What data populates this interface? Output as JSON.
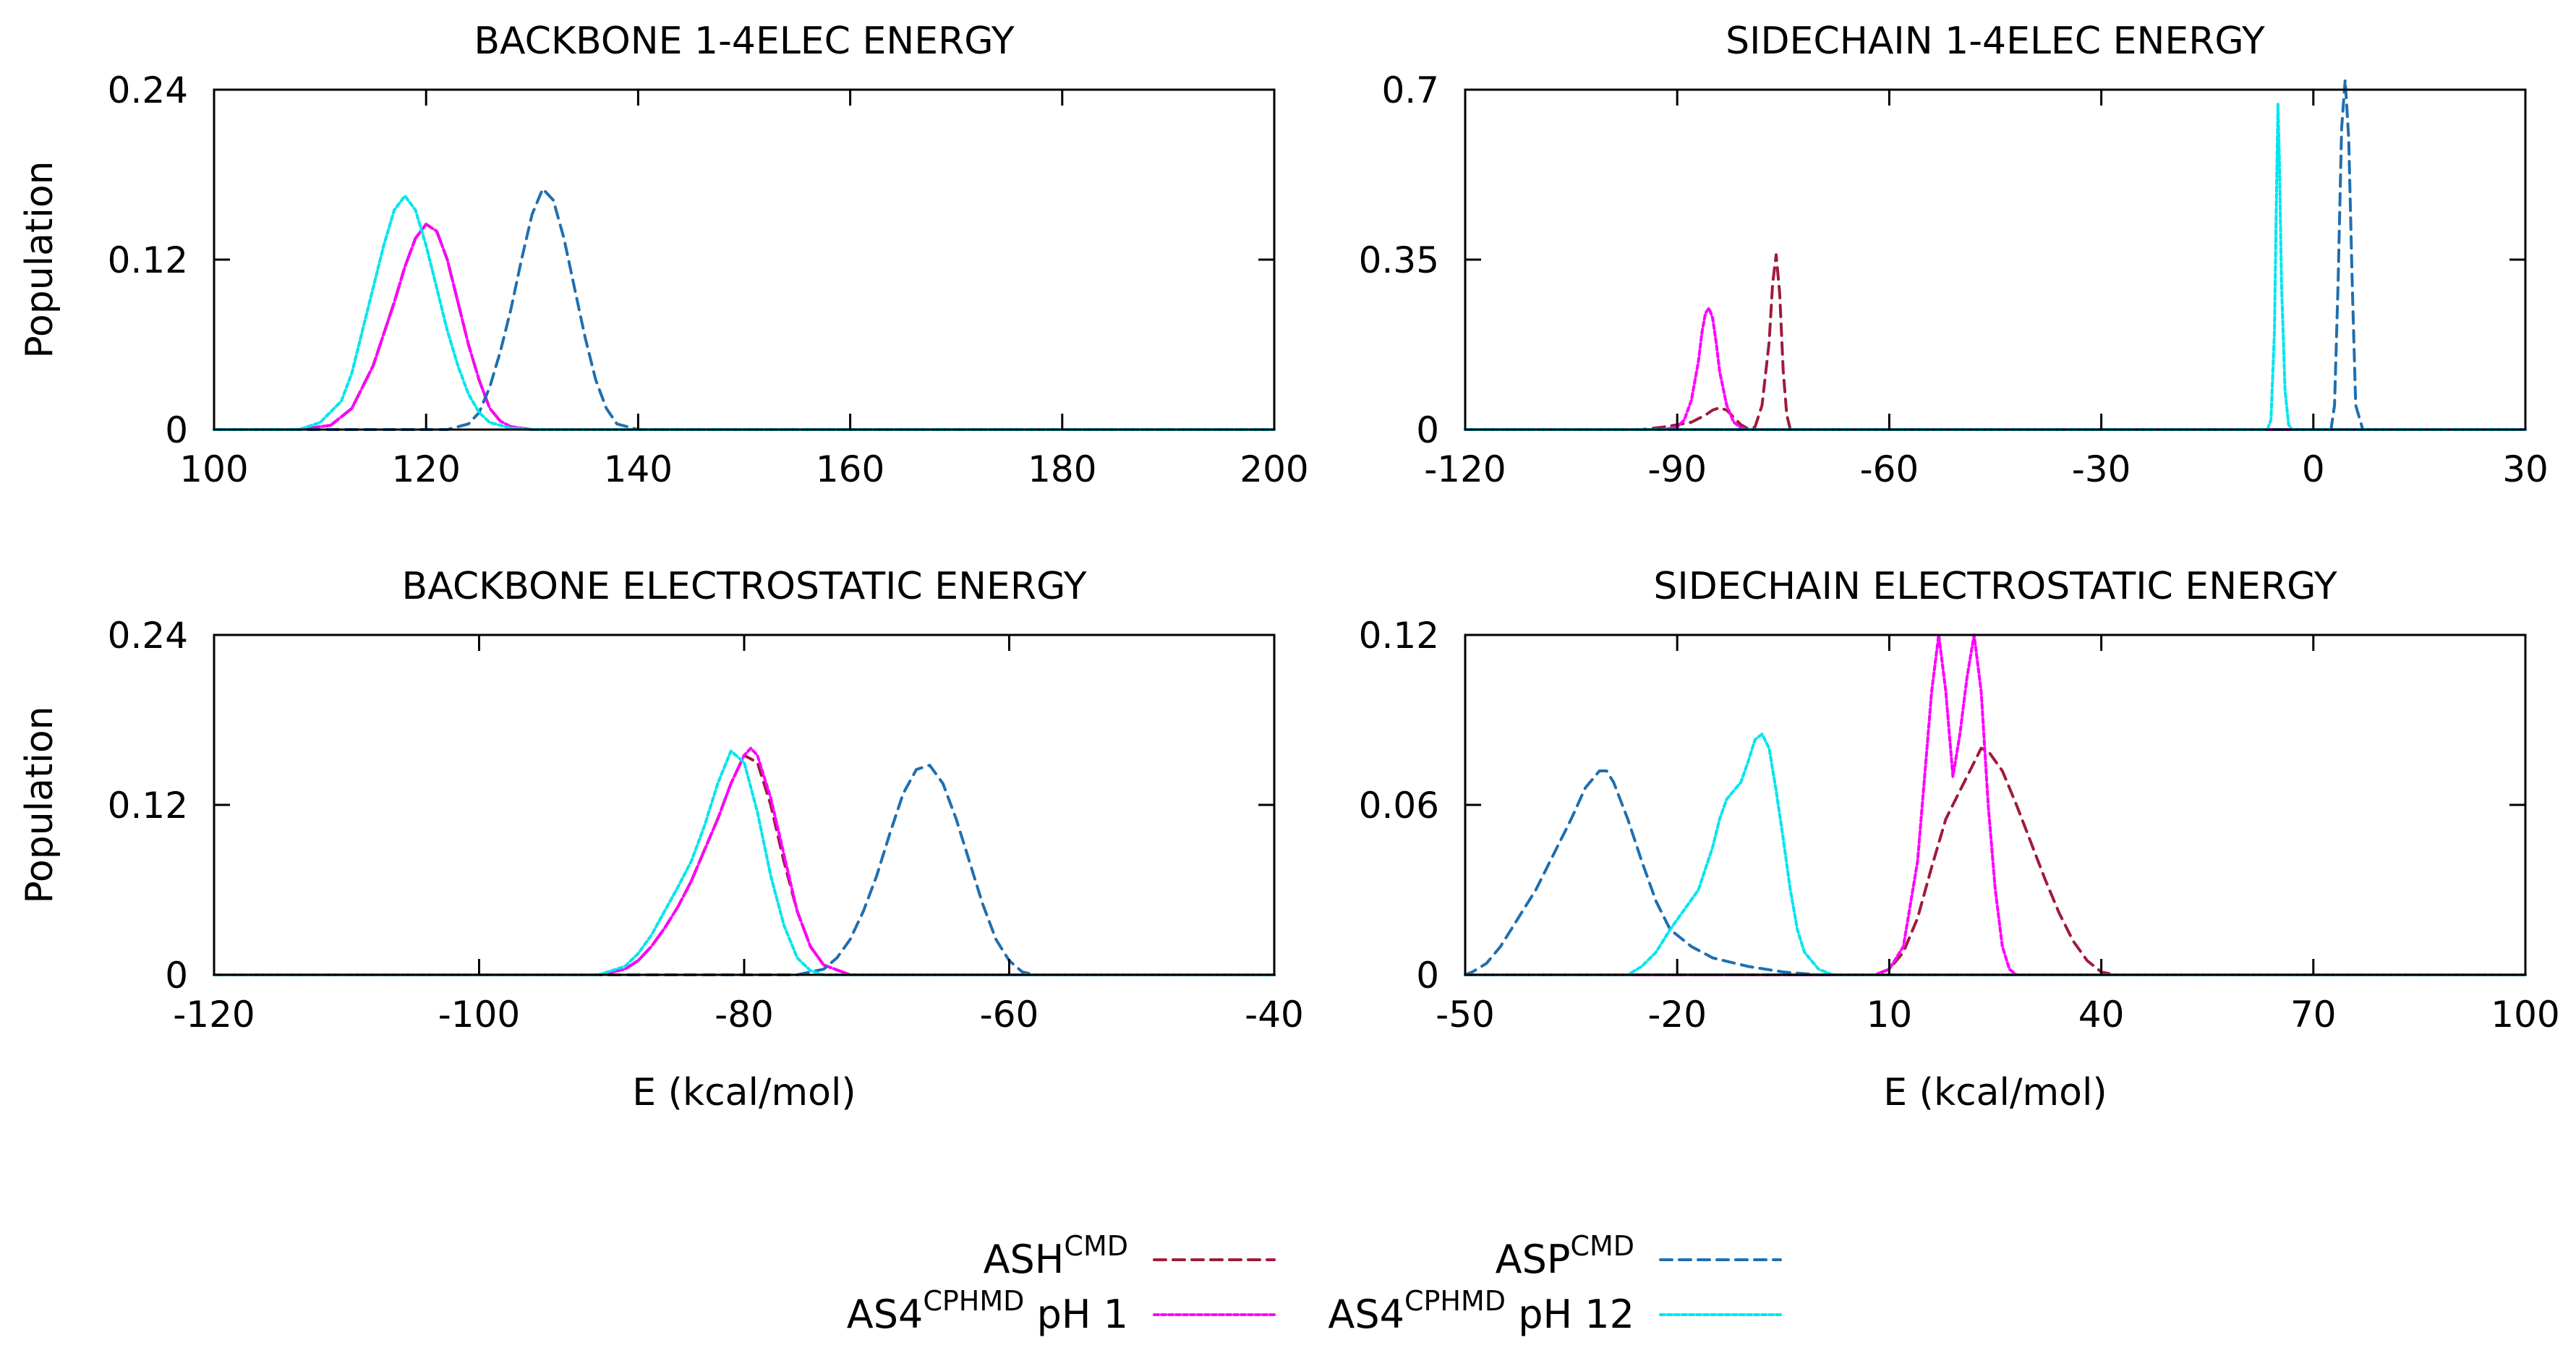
{
  "series_styles": [
    {
      "key": "ash",
      "color": "#a11a3a",
      "dash": "16 10"
    },
    {
      "key": "asp",
      "color": "#1f6fb0",
      "dash": "16 10"
    },
    {
      "key": "ph1",
      "color": "#ff00ff",
      "dash": "6 4"
    },
    {
      "key": "ph12",
      "color": "#00e5ee",
      "dash": "6 4"
    }
  ],
  "legend": [
    {
      "key": "ash",
      "base": "ASH",
      "sup": "CMD",
      "suffix": ""
    },
    {
      "key": "asp",
      "base": "ASP",
      "sup": "CMD",
      "suffix": ""
    },
    {
      "key": "ph1",
      "base": "AS4",
      "sup": "CPHMD",
      "suffix": " pH 1"
    },
    {
      "key": "ph12",
      "base": "AS4",
      "sup": "CPHMD",
      "suffix": " pH 12"
    }
  ],
  "chart_data": [
    {
      "type": "line",
      "title": "BACKBONE 1-4ELEC ENERGY",
      "xlabel": "",
      "ylabel": "Population",
      "xlim": [
        100,
        200
      ],
      "ylim": [
        0,
        0.24
      ],
      "xticks": [
        100,
        120,
        140,
        160,
        180,
        200
      ],
      "xtick_labels": [
        "100",
        "120",
        "140",
        "160",
        "180",
        "200"
      ],
      "yticks": [
        0,
        0.12,
        0.24
      ],
      "ytick_labels": [
        "0",
        "0.12",
        "0.24"
      ],
      "series": [
        {
          "name": "ASH CMD",
          "key": "ash",
          "x": [
            100,
            108,
            111,
            113,
            115,
            117,
            118,
            119,
            120,
            121,
            122,
            123,
            124,
            125,
            126,
            127,
            128,
            130
          ],
          "y": [
            0,
            0,
            0.003,
            0.015,
            0.045,
            0.09,
            0.115,
            0.135,
            0.145,
            0.14,
            0.12,
            0.09,
            0.06,
            0.035,
            0.015,
            0.006,
            0.002,
            0
          ]
        },
        {
          "name": "AS4 CPHMD pH 1",
          "key": "ph1",
          "x": [
            100,
            108,
            111,
            113,
            115,
            117,
            118,
            119,
            120,
            121,
            122,
            123,
            124,
            125,
            126,
            127,
            128,
            130
          ],
          "y": [
            0,
            0,
            0.003,
            0.015,
            0.045,
            0.09,
            0.115,
            0.135,
            0.145,
            0.14,
            0.12,
            0.09,
            0.06,
            0.035,
            0.015,
            0.006,
            0.002,
            0
          ]
        },
        {
          "name": "ASP CMD",
          "key": "asp",
          "x": [
            100,
            122,
            124,
            125,
            126,
            127,
            128,
            129,
            130,
            131,
            132,
            133,
            134,
            135,
            136,
            137,
            138,
            140,
            200
          ],
          "y": [
            0,
            0,
            0.004,
            0.012,
            0.03,
            0.055,
            0.085,
            0.12,
            0.152,
            0.17,
            0.162,
            0.135,
            0.1,
            0.065,
            0.035,
            0.015,
            0.004,
            0,
            0
          ]
        },
        {
          "name": "AS4 CPHMD pH 12",
          "key": "ph12",
          "x": [
            100,
            108,
            110,
            112,
            113,
            114,
            115,
            116,
            117,
            118,
            119,
            120,
            121,
            122,
            123,
            124,
            125,
            126,
            128,
            130,
            200
          ],
          "y": [
            0,
            0,
            0.005,
            0.02,
            0.04,
            0.07,
            0.1,
            0.13,
            0.155,
            0.165,
            0.155,
            0.13,
            0.1,
            0.07,
            0.045,
            0.025,
            0.012,
            0.005,
            0.001,
            0,
            0
          ]
        }
      ]
    },
    {
      "type": "line",
      "title": "SIDECHAIN 1-4ELEC ENERGY",
      "xlabel": "",
      "ylabel": "",
      "xlim": [
        -120,
        30
      ],
      "ylim": [
        0,
        0.7
      ],
      "xticks": [
        -120,
        -90,
        -60,
        -30,
        0,
        30
      ],
      "xtick_labels": [
        "-120",
        "-90",
        "-60",
        "-30",
        "0",
        "30"
      ],
      "yticks": [
        0,
        0.35,
        0.7
      ],
      "ytick_labels": [
        "0",
        "0.35",
        "0.7"
      ],
      "series": [
        {
          "name": "ASH CMD",
          "key": "ash",
          "x": [
            -120,
            -95,
            -92,
            -90,
            -88,
            -86,
            -85,
            -84,
            -83,
            -82,
            -81,
            -80,
            -79,
            -78,
            -77,
            -76.5,
            -76,
            -75.5,
            -75,
            -74.5,
            -74,
            -70,
            30
          ],
          "y": [
            0,
            0,
            0.005,
            0.01,
            0.015,
            0.03,
            0.04,
            0.045,
            0.04,
            0.025,
            0.01,
            0.002,
            0.005,
            0.05,
            0.18,
            0.3,
            0.36,
            0.28,
            0.12,
            0.03,
            0,
            0,
            0
          ]
        },
        {
          "name": "AS4 CPHMD pH 1",
          "key": "ph1",
          "x": [
            -120,
            -92,
            -90,
            -89,
            -88,
            -87,
            -86.5,
            -86,
            -85.5,
            -85,
            -84.5,
            -84,
            -83,
            -82,
            -81,
            -80,
            -78,
            30
          ],
          "y": [
            0,
            0,
            0.005,
            0.02,
            0.06,
            0.14,
            0.2,
            0.24,
            0.25,
            0.23,
            0.18,
            0.12,
            0.05,
            0.015,
            0.004,
            0,
            0,
            0
          ]
        },
        {
          "name": "ASP CMD",
          "key": "asp",
          "x": [
            -120,
            2.5,
            3,
            3.5,
            4,
            4.5,
            5,
            5.5,
            6,
            7,
            30
          ],
          "y": [
            0,
            0,
            0.05,
            0.3,
            0.62,
            0.72,
            0.6,
            0.3,
            0.05,
            0,
            0
          ]
        },
        {
          "name": "AS4 CPHMD pH 12",
          "key": "ph12",
          "x": [
            -120,
            -6.5,
            -6,
            -5.5,
            -5.2,
            -5,
            -4.8,
            -4.5,
            -4,
            -3.5,
            -3,
            30
          ],
          "y": [
            0,
            0,
            0.02,
            0.2,
            0.5,
            0.67,
            0.55,
            0.3,
            0.08,
            0.01,
            0,
            0
          ]
        }
      ]
    },
    {
      "type": "line",
      "title": "BACKBONE ELECTROSTATIC ENERGY",
      "xlabel": "E (kcal/mol)",
      "ylabel": "Population",
      "xlim": [
        -120,
        -40
      ],
      "ylim": [
        0,
        0.24
      ],
      "xticks": [
        -120,
        -100,
        -80,
        -60,
        -40
      ],
      "xtick_labels": [
        "-120",
        "-100",
        "-80",
        "-60",
        "-40"
      ],
      "yticks": [
        0,
        0.12,
        0.24
      ],
      "ytick_labels": [
        "0",
        "0.12",
        "0.24"
      ],
      "series": [
        {
          "name": "ASH CMD",
          "key": "ash",
          "x": [
            -120,
            -91,
            -89,
            -88,
            -87,
            -86,
            -85,
            -84,
            -83,
            -82,
            -81,
            -80,
            -79,
            -78,
            -77,
            -76,
            -75,
            -74,
            -72,
            -40
          ],
          "y": [
            0,
            0,
            0.004,
            0.01,
            0.02,
            0.033,
            0.048,
            0.066,
            0.088,
            0.11,
            0.135,
            0.155,
            0.15,
            0.12,
            0.08,
            0.045,
            0.02,
            0.007,
            0,
            0
          ]
        },
        {
          "name": "AS4 CPHMD pH 1",
          "key": "ph1",
          "x": [
            -120,
            -91,
            -89,
            -88,
            -87,
            -86,
            -85,
            -84,
            -83,
            -82,
            -81,
            -80,
            -79.5,
            -79,
            -78,
            -77,
            -76,
            -75,
            -74,
            -72,
            -40
          ],
          "y": [
            0,
            0,
            0.004,
            0.01,
            0.02,
            0.033,
            0.048,
            0.066,
            0.088,
            0.11,
            0.135,
            0.155,
            0.16,
            0.155,
            0.125,
            0.085,
            0.045,
            0.02,
            0.007,
            0,
            0
          ]
        },
        {
          "name": "ASP CMD",
          "key": "asp",
          "x": [
            -120,
            -76,
            -74,
            -73,
            -72,
            -71,
            -70,
            -69,
            -68,
            -67,
            -66,
            -65,
            -64,
            -63,
            -62,
            -61,
            -60,
            -59,
            -58,
            -40
          ],
          "y": [
            0,
            0,
            0.004,
            0.012,
            0.025,
            0.045,
            0.07,
            0.1,
            0.128,
            0.145,
            0.148,
            0.135,
            0.11,
            0.08,
            0.05,
            0.025,
            0.01,
            0.002,
            0,
            0
          ]
        },
        {
          "name": "AS4 CPHMD pH 12",
          "key": "ph12",
          "x": [
            -120,
            -91,
            -89,
            -88,
            -87,
            -86,
            -85,
            -84,
            -83,
            -82,
            -81,
            -80,
            -79,
            -78,
            -77,
            -76,
            -75,
            -74,
            -40
          ],
          "y": [
            0,
            0,
            0.006,
            0.015,
            0.028,
            0.045,
            0.062,
            0.08,
            0.105,
            0.135,
            0.158,
            0.15,
            0.115,
            0.07,
            0.035,
            0.012,
            0.003,
            0,
            0
          ]
        }
      ]
    },
    {
      "type": "line",
      "title": "SIDECHAIN ELECTROSTATIC ENERGY",
      "xlabel": "E (kcal/mol)",
      "ylabel": "",
      "xlim": [
        -50,
        100
      ],
      "ylim": [
        0,
        0.12
      ],
      "xticks": [
        -50,
        -20,
        10,
        40,
        70,
        100
      ],
      "xtick_labels": [
        "-50",
        "-20",
        "10",
        "40",
        "70",
        "100"
      ],
      "yticks": [
        0,
        0.06,
        0.12
      ],
      "ytick_labels": [
        "0",
        "0.06",
        "0.12"
      ],
      "series": [
        {
          "name": "ASH CMD",
          "key": "ash",
          "x": [
            -50,
            8,
            10,
            12,
            14,
            16,
            18,
            20,
            22,
            23,
            24,
            26,
            28,
            30,
            32,
            34,
            36,
            38,
            40,
            42,
            100
          ],
          "y": [
            0,
            0,
            0.002,
            0.008,
            0.02,
            0.038,
            0.055,
            0.065,
            0.075,
            0.08,
            0.079,
            0.072,
            0.06,
            0.047,
            0.034,
            0.022,
            0.012,
            0.005,
            0.001,
            0,
            0
          ]
        },
        {
          "name": "AS4 CPHMD pH 1",
          "key": "ph1",
          "x": [
            -50,
            8,
            10,
            12,
            14,
            15,
            16,
            17,
            18,
            19,
            20,
            21,
            22,
            23,
            24,
            25,
            26,
            27,
            28,
            100
          ],
          "y": [
            0,
            0,
            0.002,
            0.01,
            0.04,
            0.07,
            0.1,
            0.12,
            0.1,
            0.07,
            0.085,
            0.105,
            0.12,
            0.1,
            0.06,
            0.03,
            0.01,
            0.002,
            0,
            0
          ]
        },
        {
          "name": "ASP CMD",
          "key": "asp",
          "x": [
            -50,
            -49,
            -47,
            -45,
            -43,
            -40,
            -38,
            -35,
            -33,
            -31,
            -30,
            -29,
            -27,
            -25,
            -23,
            -21,
            -18,
            -15,
            -10,
            -5,
            0,
            5,
            100
          ],
          "y": [
            0,
            0.001,
            0.004,
            0.01,
            0.018,
            0.03,
            0.04,
            0.055,
            0.066,
            0.072,
            0.072,
            0.068,
            0.055,
            0.04,
            0.026,
            0.016,
            0.01,
            0.006,
            0.003,
            0.001,
            0,
            0,
            0
          ]
        },
        {
          "name": "AS4 CPHMD pH 12",
          "key": "ph12",
          "x": [
            -50,
            -27,
            -25,
            -23,
            -21,
            -19,
            -17,
            -15,
            -14,
            -13,
            -12,
            -11,
            -10,
            -9,
            -8,
            -7,
            -6,
            -5,
            -4,
            -3,
            -2,
            0,
            2,
            4,
            100
          ],
          "y": [
            0,
            0,
            0.003,
            0.008,
            0.016,
            0.023,
            0.03,
            0.045,
            0.055,
            0.062,
            0.065,
            0.068,
            0.075,
            0.083,
            0.085,
            0.08,
            0.065,
            0.048,
            0.03,
            0.016,
            0.008,
            0.002,
            0,
            0,
            0
          ]
        }
      ]
    }
  ]
}
